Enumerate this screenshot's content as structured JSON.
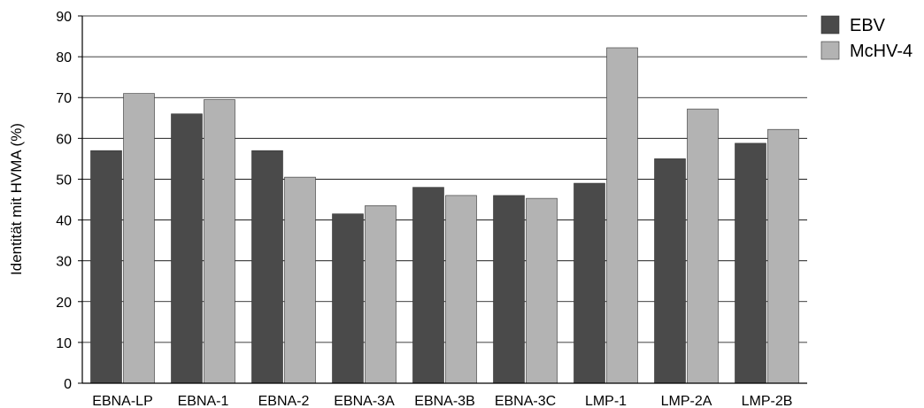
{
  "colors": {
    "EBV": "#4a4a4a",
    "McHV-4": "#b3b3b3",
    "gridline": "#000000",
    "bar_stroke": "#333333"
  },
  "chart_data": {
    "type": "bar",
    "categories": [
      "EBNA-LP",
      "EBNA-1",
      "EBNA-2",
      "EBNA-3A",
      "EBNA-3B",
      "EBNA-3C",
      "LMP-1",
      "LMP-2A",
      "LMP-2B"
    ],
    "series": [
      {
        "name": "EBV",
        "values": [
          57,
          66,
          57,
          41.5,
          48,
          46,
          49,
          55,
          58.8
        ]
      },
      {
        "name": "McHV-4",
        "values": [
          71,
          69.5,
          50.5,
          43.5,
          46,
          45.3,
          82.2,
          67.2,
          62.2
        ]
      }
    ],
    "title": "",
    "xlabel": "",
    "ylabel": "Identität mit HVMA (%)",
    "ylim": [
      0,
      90
    ],
    "yticks": [
      0,
      10,
      20,
      30,
      40,
      50,
      60,
      70,
      80,
      90
    ],
    "grid": true,
    "legend_position": "top-right"
  }
}
